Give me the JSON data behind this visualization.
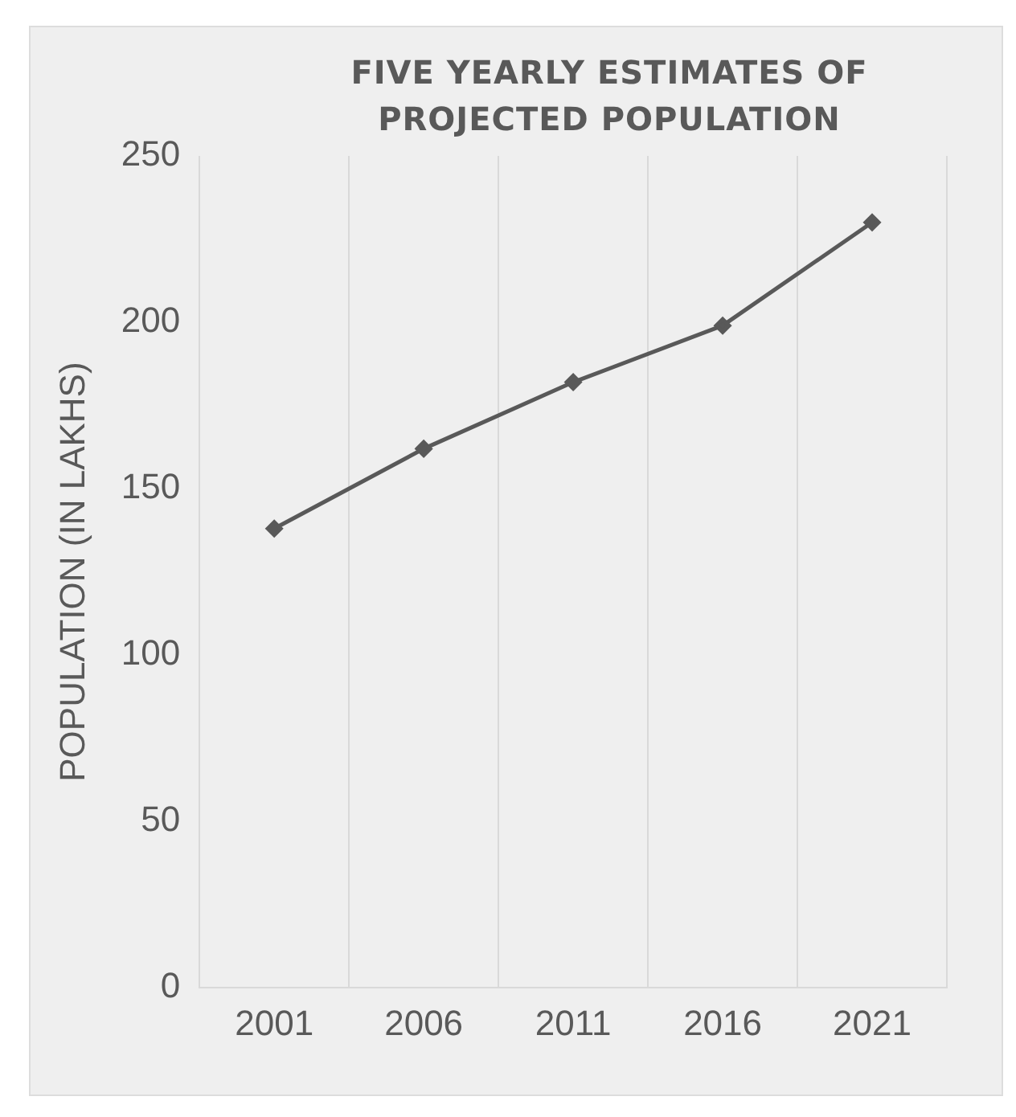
{
  "chart_data": {
    "type": "line",
    "title": "FIVE YEARLY ESTIMATES OF PROJECTED POPULATION",
    "ylabel": "POPULATION (IN LAKHS)",
    "categories": [
      "2001",
      "2006",
      "2011",
      "2016",
      "2021"
    ],
    "series": [
      {
        "color": "#595959",
        "values": [
          138,
          162,
          182,
          199,
          230
        ]
      }
    ],
    "ylim": [
      0,
      250
    ],
    "yticks": [
      0,
      50,
      100,
      150,
      200,
      250
    ],
    "grid": "x",
    "legend": false,
    "marker": "diamond",
    "line_style": "solid"
  }
}
